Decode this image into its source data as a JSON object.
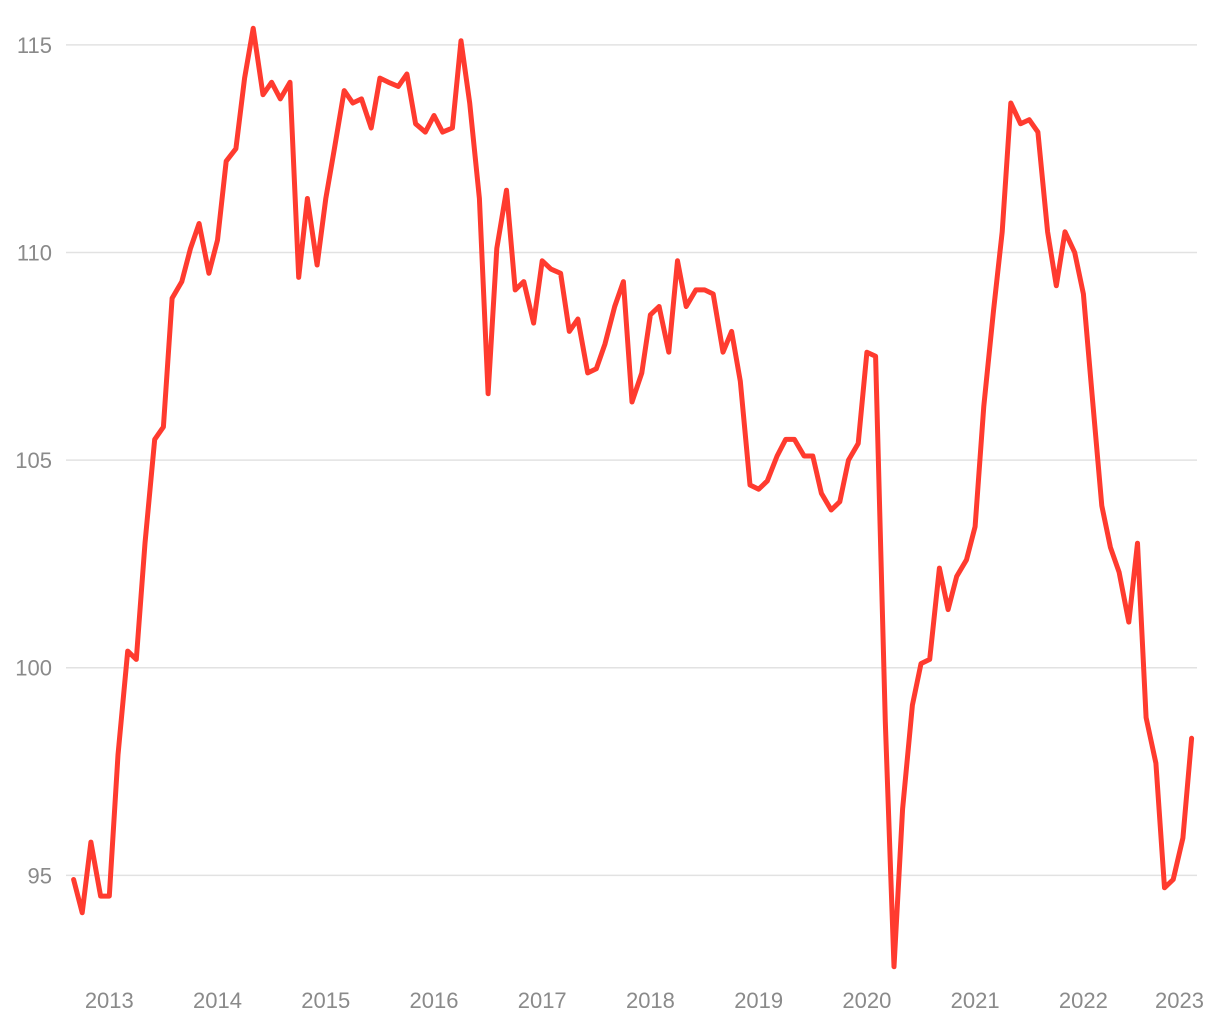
{
  "chart_data": {
    "type": "line",
    "title": "",
    "xlabel": "",
    "ylabel": "",
    "xlim": [
      2012.6,
      2023.05
    ],
    "ylim": [
      92.6,
      115.6
    ],
    "grid": "horizontal",
    "yticks": [
      95,
      100,
      105,
      110,
      115
    ],
    "xticks": [
      2013,
      2014,
      2015,
      2016,
      2017,
      2018,
      2019,
      2020,
      2021,
      2022,
      2023
    ],
    "colors": {
      "line": "#ff3b2f",
      "grid": "#e2e2e2",
      "tick_text": "#8a8a8a"
    },
    "series": [
      {
        "x": [
          2012.67,
          2012.75,
          2012.83,
          2012.92,
          2013.0,
          2013.08,
          2013.17,
          2013.25,
          2013.33,
          2013.42,
          2013.5,
          2013.58,
          2013.67,
          2013.75,
          2013.83,
          2013.92,
          2014.0,
          2014.08,
          2014.17,
          2014.25,
          2014.33,
          2014.42,
          2014.5,
          2014.58,
          2014.67,
          2014.75,
          2014.83,
          2014.92,
          2015.0,
          2015.08,
          2015.17,
          2015.25,
          2015.33,
          2015.42,
          2015.5,
          2015.58,
          2015.67,
          2015.75,
          2015.83,
          2015.92,
          2016.0,
          2016.08,
          2016.17,
          2016.25,
          2016.33,
          2016.42,
          2016.5,
          2016.58,
          2016.67,
          2016.75,
          2016.83,
          2016.92,
          2017.0,
          2017.08,
          2017.17,
          2017.25,
          2017.33,
          2017.42,
          2017.5,
          2017.58,
          2017.67,
          2017.75,
          2017.83,
          2017.92,
          2018.0,
          2018.08,
          2018.17,
          2018.25,
          2018.33,
          2018.42,
          2018.5,
          2018.58,
          2018.67,
          2018.75,
          2018.83,
          2018.92,
          2019.0,
          2019.08,
          2019.17,
          2019.25,
          2019.33,
          2019.42,
          2019.5,
          2019.58,
          2019.67,
          2019.75,
          2019.83,
          2019.92,
          2020.0,
          2020.08,
          2020.17,
          2020.25,
          2020.33,
          2020.42,
          2020.5,
          2020.58,
          2020.67,
          2020.75,
          2020.83,
          2020.92,
          2021.0,
          2021.08,
          2021.17,
          2021.25,
          2021.33,
          2021.42,
          2021.5,
          2021.58,
          2021.67,
          2021.75,
          2021.83,
          2021.92,
          2022.0,
          2022.08,
          2022.17,
          2022.25,
          2022.33,
          2022.42,
          2022.5,
          2022.58,
          2022.67,
          2022.75,
          2022.83,
          2022.92,
          2023.0
        ],
        "values": [
          94.9,
          94.1,
          95.8,
          94.5,
          94.5,
          97.9,
          100.4,
          100.2,
          103.0,
          105.5,
          105.8,
          108.9,
          109.3,
          110.1,
          110.7,
          109.5,
          110.3,
          112.2,
          112.5,
          114.2,
          115.4,
          113.8,
          114.1,
          113.7,
          114.1,
          109.4,
          111.3,
          109.7,
          111.3,
          112.5,
          113.9,
          113.6,
          113.7,
          113.0,
          114.2,
          114.1,
          114.0,
          114.3,
          113.1,
          112.9,
          113.3,
          112.9,
          113.0,
          115.1,
          113.6,
          111.3,
          106.6,
          110.1,
          111.5,
          109.1,
          109.3,
          108.3,
          109.8,
          109.6,
          109.5,
          108.1,
          108.4,
          107.1,
          107.2,
          107.8,
          108.7,
          109.3,
          106.4,
          107.1,
          108.5,
          108.7,
          107.6,
          109.8,
          108.7,
          109.1,
          109.1,
          109.0,
          107.6,
          108.1,
          106.9,
          104.4,
          104.3,
          104.5,
          105.1,
          105.5,
          105.5,
          105.1,
          105.1,
          104.2,
          103.8,
          104.0,
          105.0,
          105.4,
          107.6,
          107.5,
          98.7,
          92.8,
          96.6,
          99.1,
          100.1,
          100.2,
          102.4,
          101.4,
          102.2,
          102.6,
          103.4,
          106.3,
          108.6,
          110.5,
          113.6,
          113.1,
          113.2,
          112.9,
          110.5,
          109.2,
          110.5,
          110.0,
          109.0,
          106.6,
          103.9,
          102.9,
          102.3,
          101.1,
          103.0,
          98.8,
          97.7,
          94.7,
          94.9,
          95.9,
          98.3
        ]
      }
    ]
  }
}
